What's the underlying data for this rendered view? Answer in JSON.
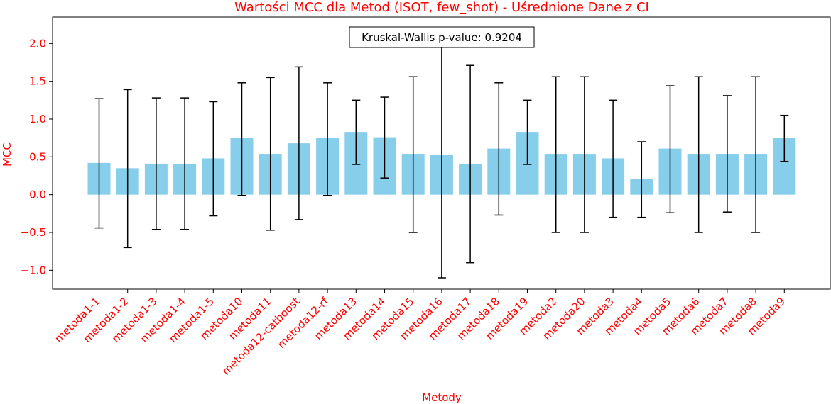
{
  "chart_data": {
    "type": "bar",
    "title": "Wartości MCC dla Metod (ISOT, few_shot) - Uśrednione Dane z CI",
    "xlabel": "Metody",
    "ylabel": "MCC",
    "ylim": [
      -1.25,
      2.35
    ],
    "yticks": [
      -1.0,
      -0.5,
      0.0,
      0.5,
      1.0,
      1.5,
      2.0
    ],
    "ytick_labels": [
      "−1.0",
      "−0.5",
      "0.0",
      "0.5",
      "1.0",
      "1.5",
      "2.0"
    ],
    "grid": false,
    "annotation": "Kruskal-Wallis p-value: 0.9204",
    "bar_color": "#87ceeb",
    "error_color": "#000000",
    "text_color": "#ff0000",
    "categories": [
      "metoda1-1",
      "metoda1-2",
      "metoda1-3",
      "metoda1-4",
      "metoda1-5",
      "metoda10",
      "metoda11",
      "metoda12-catboost",
      "metoda12-rf",
      "metoda13",
      "metoda14",
      "metoda15",
      "metoda16",
      "metoda17",
      "metoda18",
      "metoda19",
      "metoda2",
      "metoda20",
      "metoda3",
      "metoda4",
      "metoda5",
      "metoda6",
      "metoda7",
      "metoda8",
      "metoda9"
    ],
    "values": [
      0.42,
      0.35,
      0.41,
      0.41,
      0.48,
      0.75,
      0.54,
      0.68,
      0.75,
      0.83,
      0.76,
      0.54,
      0.53,
      0.41,
      0.61,
      0.83,
      0.54,
      0.54,
      0.48,
      0.21,
      0.61,
      0.54,
      0.54,
      0.54,
      0.75
    ],
    "ci_lower": [
      -0.44,
      -0.7,
      -0.46,
      -0.46,
      -0.28,
      -0.01,
      -0.47,
      -0.33,
      -0.01,
      0.4,
      0.22,
      -0.5,
      -1.1,
      -0.9,
      -0.27,
      0.4,
      -0.5,
      -0.5,
      -0.3,
      -0.3,
      -0.24,
      -0.5,
      -0.23,
      -0.5,
      0.44
    ],
    "ci_upper": [
      1.27,
      1.39,
      1.28,
      1.28,
      1.23,
      1.48,
      1.55,
      1.69,
      1.48,
      1.25,
      1.29,
      1.56,
      2.15,
      1.71,
      1.48,
      1.25,
      1.56,
      1.56,
      1.25,
      0.7,
      1.44,
      1.56,
      1.31,
      1.56,
      1.05
    ]
  }
}
